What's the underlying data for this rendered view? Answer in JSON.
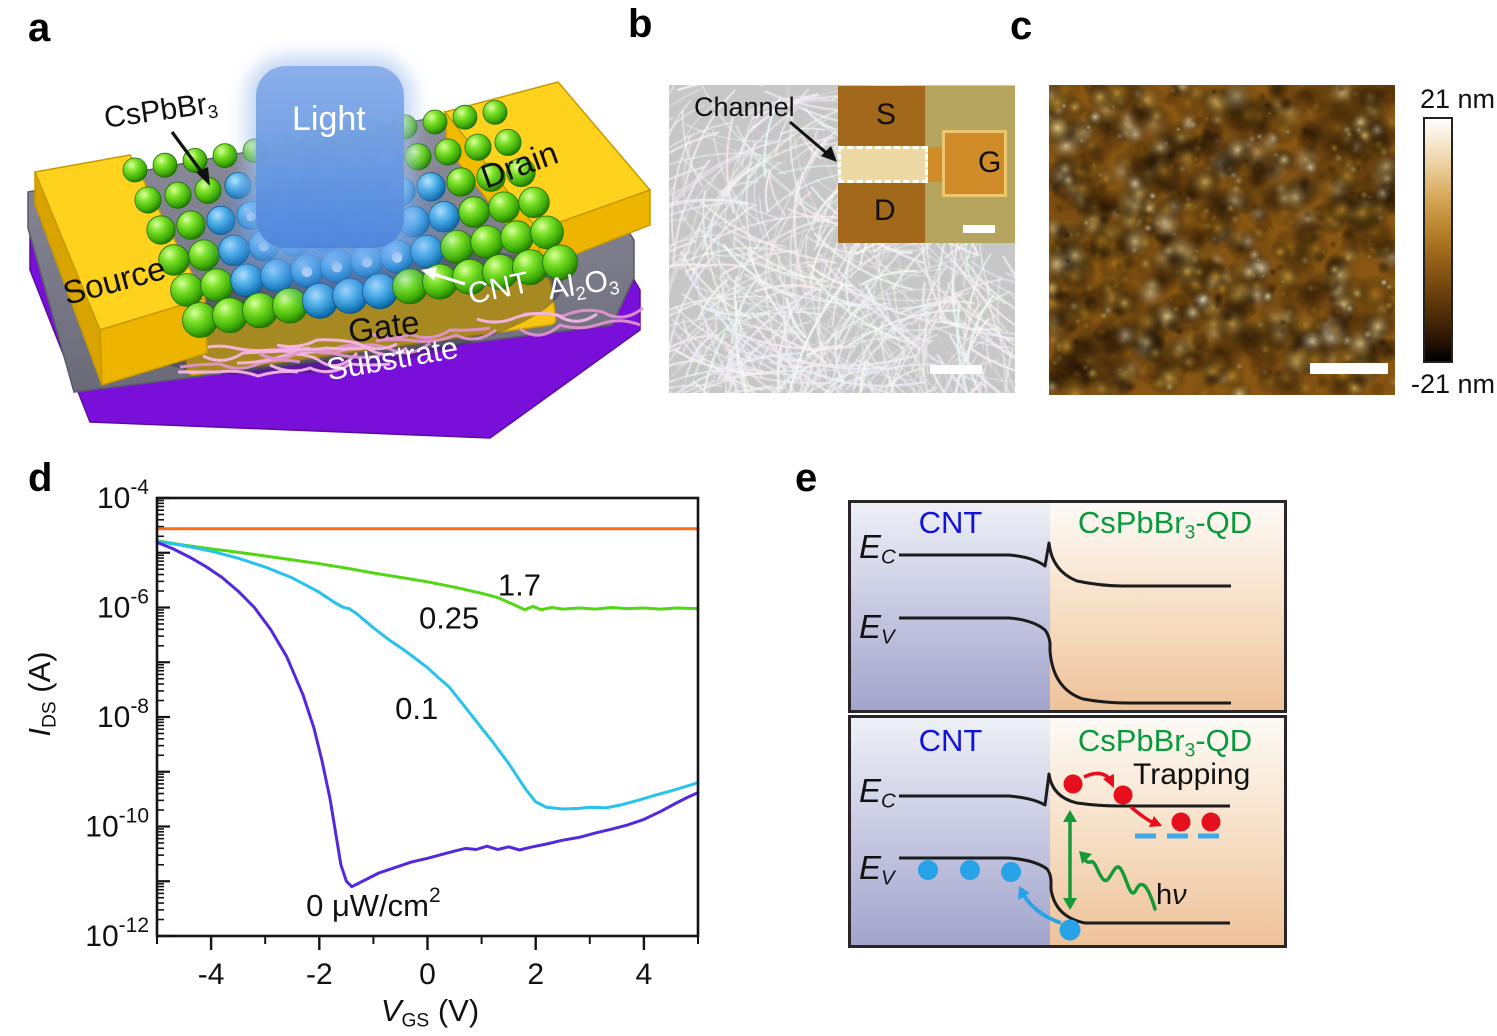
{
  "figure": {
    "panel_letters": {
      "a": "a",
      "b": "b",
      "c": "c",
      "d": "d",
      "e": "e"
    }
  },
  "panel_a": {
    "labels": {
      "qd_base": "CsPbBr",
      "qd_sub": "3",
      "light": "Light",
      "drain": "Drain",
      "source": "Source",
      "cnt": "CNT",
      "ox1": "Al",
      "ox1s": "2",
      "ox2": "O",
      "ox2s": "3",
      "gate": "Gate",
      "substrate": "Substrate"
    },
    "colors": {
      "electrode": "#f6c511",
      "oxide": "#7d7d8e",
      "substrate_slab": "#7a0fd9",
      "qd_sphere": "#6ede1f",
      "light_beam": "#5b8dde",
      "cnt_strand": "#f0a8dc"
    }
  },
  "panel_b": {
    "annotation": "Channel",
    "inset_labels": {
      "source": "S",
      "drain": "D",
      "gate": "G"
    }
  },
  "panel_c": {
    "colorbar": {
      "max_label": "21 nm",
      "min_label": "-21 nm"
    }
  },
  "panel_d": {
    "chart_data": {
      "type": "line",
      "title": "",
      "xlabel": {
        "main": "V",
        "sub": "GS",
        "unit": " (V)"
      },
      "ylabel": {
        "main": "I",
        "sub": "DS",
        "unit": " (A)"
      },
      "x_range": [
        -5,
        5
      ],
      "y_log_range": [
        -12,
        -4
      ],
      "x_major_ticks": [
        -4,
        -2,
        0,
        2,
        4
      ],
      "x_minor_ticks": [
        -5,
        -3,
        -1,
        1,
        3,
        5
      ],
      "y_labeled_exponents": [
        -4,
        -6,
        -8,
        -10,
        -12
      ],
      "grid": false,
      "legend_position": "inline-annotations",
      "series": [
        {
          "name": "1.7 uW/cm2",
          "color": "#ff6a13",
          "points": [
            [
              -5,
              -4.56
            ],
            [
              -3,
              -4.56
            ],
            [
              -1,
              -4.56
            ],
            [
              1,
              -4.56
            ],
            [
              3,
              -4.56
            ],
            [
              5,
              -4.56
            ]
          ]
        },
        {
          "name": "0.25 uW/cm2",
          "color": "#52d813",
          "points": [
            [
              -5,
              -4.78
            ],
            [
              -4.5,
              -4.86
            ],
            [
              -4,
              -4.93
            ],
            [
              -3.5,
              -4.99
            ],
            [
              -3,
              -5.06
            ],
            [
              -2.5,
              -5.13
            ],
            [
              -2,
              -5.2
            ],
            [
              -1.5,
              -5.28
            ],
            [
              -1,
              -5.37
            ],
            [
              -0.5,
              -5.45
            ],
            [
              0,
              -5.53
            ],
            [
              0.5,
              -5.63
            ],
            [
              1,
              -5.74
            ],
            [
              1.3,
              -5.82
            ],
            [
              1.6,
              -5.95
            ],
            [
              1.8,
              -6.04
            ],
            [
              1.95,
              -5.98
            ],
            [
              2.1,
              -6.04
            ],
            [
              2.3,
              -6.0
            ],
            [
              2.5,
              -6.03
            ],
            [
              2.8,
              -6.01
            ],
            [
              3.1,
              -6.03
            ],
            [
              3.4,
              -6.0
            ],
            [
              3.7,
              -6.02
            ],
            [
              4,
              -6.01
            ],
            [
              4.3,
              -6.03
            ],
            [
              4.6,
              -6.01
            ],
            [
              5,
              -6.02
            ]
          ]
        },
        {
          "name": "0.1 uW/cm2",
          "color": "#27c3ee",
          "points": [
            [
              -5,
              -4.79
            ],
            [
              -4.5,
              -4.87
            ],
            [
              -4,
              -4.97
            ],
            [
              -3.5,
              -5.1
            ],
            [
              -3,
              -5.26
            ],
            [
              -2.5,
              -5.46
            ],
            [
              -2,
              -5.72
            ],
            [
              -1.7,
              -5.92
            ],
            [
              -1.55,
              -6.0
            ],
            [
              -1.45,
              -6.02
            ],
            [
              -1.3,
              -6.12
            ],
            [
              -1,
              -6.37
            ],
            [
              -0.7,
              -6.6
            ],
            [
              -0.4,
              -6.8
            ],
            [
              -0.2,
              -6.95
            ],
            [
              0,
              -7.1
            ],
            [
              0.2,
              -7.28
            ],
            [
              0.4,
              -7.45
            ],
            [
              0.6,
              -7.7
            ],
            [
              0.8,
              -7.95
            ],
            [
              1,
              -8.2
            ],
            [
              1.2,
              -8.45
            ],
            [
              1.5,
              -8.85
            ],
            [
              1.8,
              -9.3
            ],
            [
              2,
              -9.55
            ],
            [
              2.2,
              -9.65
            ],
            [
              2.5,
              -9.68
            ],
            [
              2.8,
              -9.67
            ],
            [
              3,
              -9.65
            ],
            [
              3.3,
              -9.66
            ],
            [
              3.6,
              -9.6
            ],
            [
              3.9,
              -9.52
            ],
            [
              4.2,
              -9.43
            ],
            [
              4.5,
              -9.35
            ],
            [
              4.8,
              -9.26
            ],
            [
              5,
              -9.2
            ]
          ]
        },
        {
          "name": "0 uW/cm2",
          "color": "#5428dd",
          "points": [
            [
              -5,
              -4.81
            ],
            [
              -4.7,
              -4.93
            ],
            [
              -4.4,
              -5.08
            ],
            [
              -4.1,
              -5.25
            ],
            [
              -3.8,
              -5.45
            ],
            [
              -3.5,
              -5.7
            ],
            [
              -3.2,
              -6.0
            ],
            [
              -2.9,
              -6.4
            ],
            [
              -2.6,
              -6.9
            ],
            [
              -2.3,
              -7.6
            ],
            [
              -2.1,
              -8.2
            ],
            [
              -1.95,
              -8.8
            ],
            [
              -1.8,
              -9.5
            ],
            [
              -1.7,
              -10.1
            ],
            [
              -1.6,
              -10.7
            ],
            [
              -1.5,
              -11.0
            ],
            [
              -1.4,
              -11.1
            ],
            [
              -1.3,
              -11.05
            ],
            [
              -1.1,
              -10.95
            ],
            [
              -0.9,
              -10.85
            ],
            [
              -0.6,
              -10.75
            ],
            [
              -0.3,
              -10.65
            ],
            [
              0,
              -10.58
            ],
            [
              0.3,
              -10.5
            ],
            [
              0.5,
              -10.45
            ],
            [
              0.7,
              -10.4
            ],
            [
              0.9,
              -10.42
            ],
            [
              1.1,
              -10.36
            ],
            [
              1.3,
              -10.42
            ],
            [
              1.5,
              -10.37
            ],
            [
              1.7,
              -10.43
            ],
            [
              1.9,
              -10.38
            ],
            [
              2.2,
              -10.32
            ],
            [
              2.5,
              -10.25
            ],
            [
              2.8,
              -10.2
            ],
            [
              3.1,
              -10.12
            ],
            [
              3.4,
              -10.05
            ],
            [
              3.7,
              -9.97
            ],
            [
              4,
              -9.87
            ],
            [
              4.3,
              -9.73
            ],
            [
              4.6,
              -9.57
            ],
            [
              4.8,
              -9.47
            ],
            [
              5,
              -9.38
            ]
          ]
        }
      ],
      "annotations": [
        {
          "text": "1.7",
          "sup": "",
          "x": 1.7,
          "logy": -5.6
        },
        {
          "text": "0.25",
          "sup": "",
          "x": 0.4,
          "logy": -6.2
        },
        {
          "text": "0.1",
          "sup": "",
          "x": -0.2,
          "logy": -7.85
        },
        {
          "text": "0 μW/cm",
          "sup": "2",
          "x": -1.0,
          "logy": -11.45
        }
      ]
    }
  },
  "panel_e": {
    "labels": {
      "cnt": "CNT",
      "qd_base": "CsPbBr",
      "qd_sub": "3",
      "qd_rest": "-QD",
      "ec_main": "E",
      "ec_sub": "C",
      "ev_main": "E",
      "ev_sub": "V",
      "trapping": "Trapping",
      "photon_h": "h",
      "photon_nu": "ν"
    },
    "colors": {
      "cnt_label": "#1212dd",
      "qd_label": "#0a9a3e",
      "electron": "#e60f1e",
      "hole": "#29a3e8",
      "photon_arrow": "#169a38",
      "trap_level": "#3fa9e8"
    }
  }
}
